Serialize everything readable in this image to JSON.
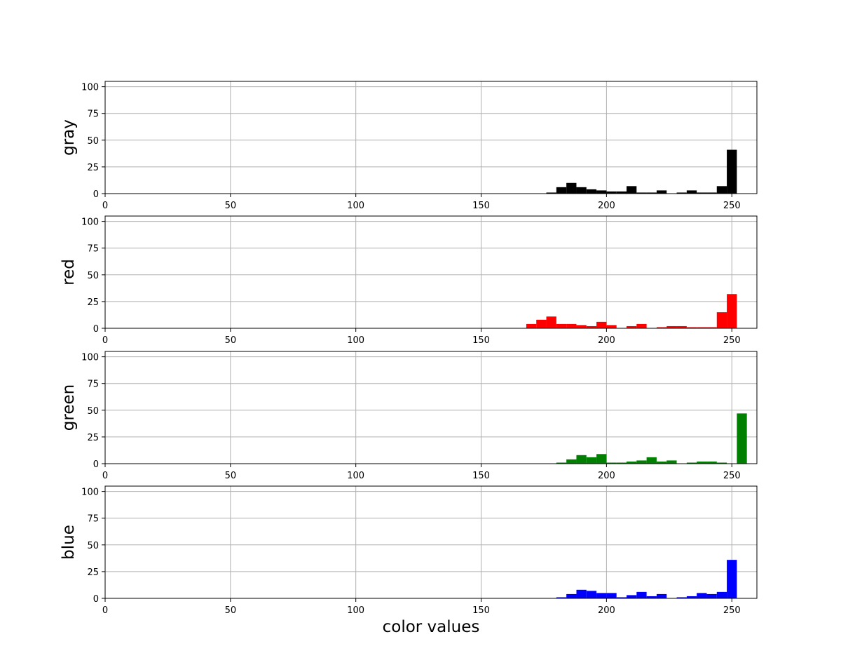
{
  "chart_data": [
    {
      "type": "bar",
      "ylabel": "gray",
      "xlabel": "",
      "color": "#000000",
      "xlim": [
        0,
        260
      ],
      "ylim": [
        0,
        105
      ],
      "xticks": [
        0,
        50,
        100,
        150,
        200,
        250
      ],
      "yticks": [
        0,
        25,
        50,
        75,
        100
      ],
      "grid": true,
      "bin_width": 4,
      "bins": [
        {
          "x": 176,
          "value": 1
        },
        {
          "x": 180,
          "value": 6
        },
        {
          "x": 184,
          "value": 10
        },
        {
          "x": 188,
          "value": 6
        },
        {
          "x": 192,
          "value": 4
        },
        {
          "x": 196,
          "value": 3
        },
        {
          "x": 200,
          "value": 2
        },
        {
          "x": 204,
          "value": 2
        },
        {
          "x": 208,
          "value": 7
        },
        {
          "x": 212,
          "value": 1
        },
        {
          "x": 216,
          "value": 1
        },
        {
          "x": 220,
          "value": 3
        },
        {
          "x": 228,
          "value": 1
        },
        {
          "x": 232,
          "value": 3
        },
        {
          "x": 236,
          "value": 1
        },
        {
          "x": 240,
          "value": 1
        },
        {
          "x": 244,
          "value": 7
        },
        {
          "x": 248,
          "value": 41
        }
      ]
    },
    {
      "type": "bar",
      "ylabel": "red",
      "xlabel": "",
      "color": "#ff0000",
      "xlim": [
        0,
        260
      ],
      "ylim": [
        0,
        105
      ],
      "xticks": [
        0,
        50,
        100,
        150,
        200,
        250
      ],
      "yticks": [
        0,
        25,
        50,
        75,
        100
      ],
      "grid": true,
      "bin_width": 4,
      "bins": [
        {
          "x": 168,
          "value": 4
        },
        {
          "x": 172,
          "value": 8
        },
        {
          "x": 176,
          "value": 11
        },
        {
          "x": 180,
          "value": 4
        },
        {
          "x": 184,
          "value": 4
        },
        {
          "x": 188,
          "value": 3
        },
        {
          "x": 192,
          "value": 2
        },
        {
          "x": 196,
          "value": 6
        },
        {
          "x": 200,
          "value": 3
        },
        {
          "x": 208,
          "value": 2
        },
        {
          "x": 212,
          "value": 4
        },
        {
          "x": 220,
          "value": 1
        },
        {
          "x": 224,
          "value": 2
        },
        {
          "x": 228,
          "value": 2
        },
        {
          "x": 232,
          "value": 1
        },
        {
          "x": 236,
          "value": 1
        },
        {
          "x": 240,
          "value": 1
        },
        {
          "x": 244,
          "value": 15
        },
        {
          "x": 248,
          "value": 32
        }
      ]
    },
    {
      "type": "bar",
      "ylabel": "green",
      "xlabel": "",
      "color": "#008000",
      "xlim": [
        0,
        260
      ],
      "ylim": [
        0,
        105
      ],
      "xticks": [
        0,
        50,
        100,
        150,
        200,
        250
      ],
      "yticks": [
        0,
        25,
        50,
        75,
        100
      ],
      "grid": true,
      "bin_width": 4,
      "bins": [
        {
          "x": 180,
          "value": 1
        },
        {
          "x": 184,
          "value": 4
        },
        {
          "x": 188,
          "value": 8
        },
        {
          "x": 192,
          "value": 6
        },
        {
          "x": 196,
          "value": 9
        },
        {
          "x": 200,
          "value": 1
        },
        {
          "x": 204,
          "value": 1
        },
        {
          "x": 208,
          "value": 2
        },
        {
          "x": 212,
          "value": 3
        },
        {
          "x": 216,
          "value": 6
        },
        {
          "x": 220,
          "value": 2
        },
        {
          "x": 224,
          "value": 3
        },
        {
          "x": 232,
          "value": 1
        },
        {
          "x": 236,
          "value": 2
        },
        {
          "x": 240,
          "value": 2
        },
        {
          "x": 244,
          "value": 1
        },
        {
          "x": 252,
          "value": 47
        }
      ]
    },
    {
      "type": "bar",
      "ylabel": "blue",
      "xlabel": "color values",
      "color": "#0000ff",
      "xlim": [
        0,
        260
      ],
      "ylim": [
        0,
        105
      ],
      "xticks": [
        0,
        50,
        100,
        150,
        200,
        250
      ],
      "yticks": [
        0,
        25,
        50,
        75,
        100
      ],
      "grid": true,
      "bin_width": 4,
      "bins": [
        {
          "x": 180,
          "value": 1
        },
        {
          "x": 184,
          "value": 4
        },
        {
          "x": 188,
          "value": 8
        },
        {
          "x": 192,
          "value": 7
        },
        {
          "x": 196,
          "value": 5
        },
        {
          "x": 200,
          "value": 5
        },
        {
          "x": 204,
          "value": 1
        },
        {
          "x": 208,
          "value": 3
        },
        {
          "x": 212,
          "value": 6
        },
        {
          "x": 216,
          "value": 2
        },
        {
          "x": 220,
          "value": 4
        },
        {
          "x": 228,
          "value": 1
        },
        {
          "x": 232,
          "value": 2
        },
        {
          "x": 236,
          "value": 5
        },
        {
          "x": 240,
          "value": 4
        },
        {
          "x": 244,
          "value": 6
        },
        {
          "x": 248,
          "value": 36
        }
      ]
    }
  ]
}
